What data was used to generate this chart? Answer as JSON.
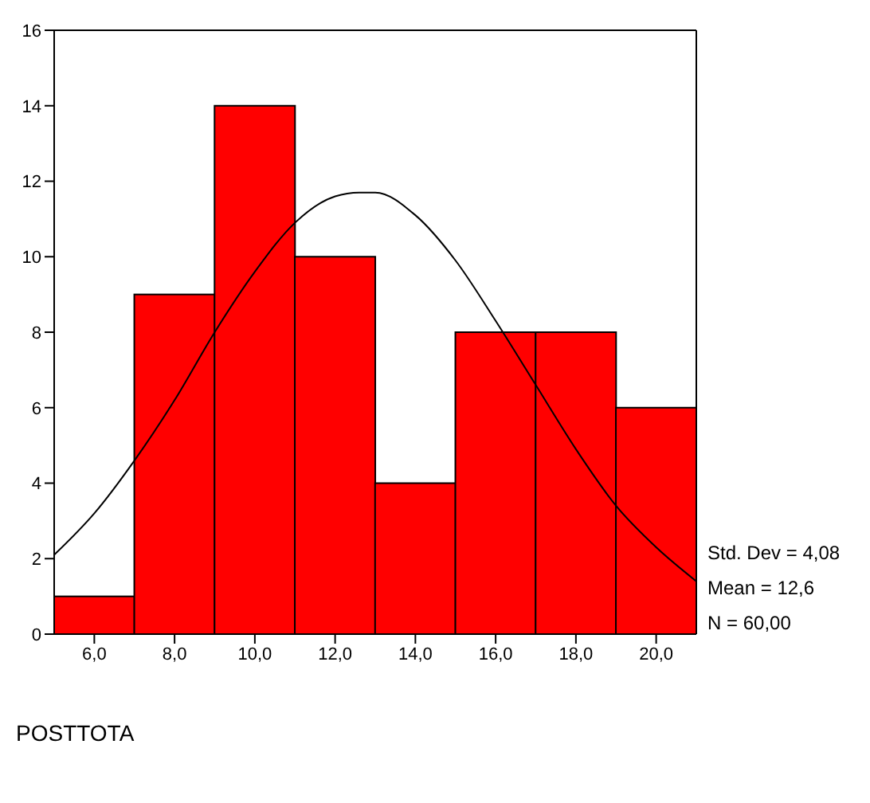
{
  "chart_data": {
    "type": "histogram",
    "xlabel": "POSTTOTA",
    "bins": [
      5,
      7,
      9,
      11,
      13,
      15,
      17,
      19,
      21
    ],
    "values": [
      1,
      9,
      14,
      10,
      4,
      8,
      8,
      6
    ],
    "color": "#ff0000",
    "series": [
      {
        "type": "line",
        "color": "#000000",
        "x": [
          5,
          6,
          7,
          8,
          9,
          10,
          11,
          12,
          12.6,
          13,
          14,
          15,
          16,
          17,
          18,
          19,
          20,
          21
        ],
        "values": [
          2.1,
          3.2,
          4.6,
          6.2,
          8.0,
          9.6,
          10.9,
          11.6,
          11.7,
          11.7,
          11.1,
          9.9,
          8.3,
          6.6,
          4.9,
          3.4,
          2.3,
          1.4
        ]
      }
    ],
    "xlim": [
      5,
      21
    ],
    "xticks": [
      {
        "value": 6,
        "label": "6,0"
      },
      {
        "value": 8,
        "label": "8,0"
      },
      {
        "value": 10,
        "label": "10,0"
      },
      {
        "value": 12,
        "label": "12,0"
      },
      {
        "value": 14,
        "label": "14,0"
      },
      {
        "value": 16,
        "label": "16,0"
      },
      {
        "value": 18,
        "label": "18,0"
      },
      {
        "value": 20,
        "label": "20,0"
      }
    ],
    "ylim": [
      0,
      16
    ],
    "yticks": [
      0,
      2,
      4,
      6,
      8,
      10,
      12,
      14,
      16
    ],
    "grid": false,
    "annotations": [
      "Std. Dev = 4,08",
      "Mean = 12,6",
      "N = 60,00"
    ]
  }
}
